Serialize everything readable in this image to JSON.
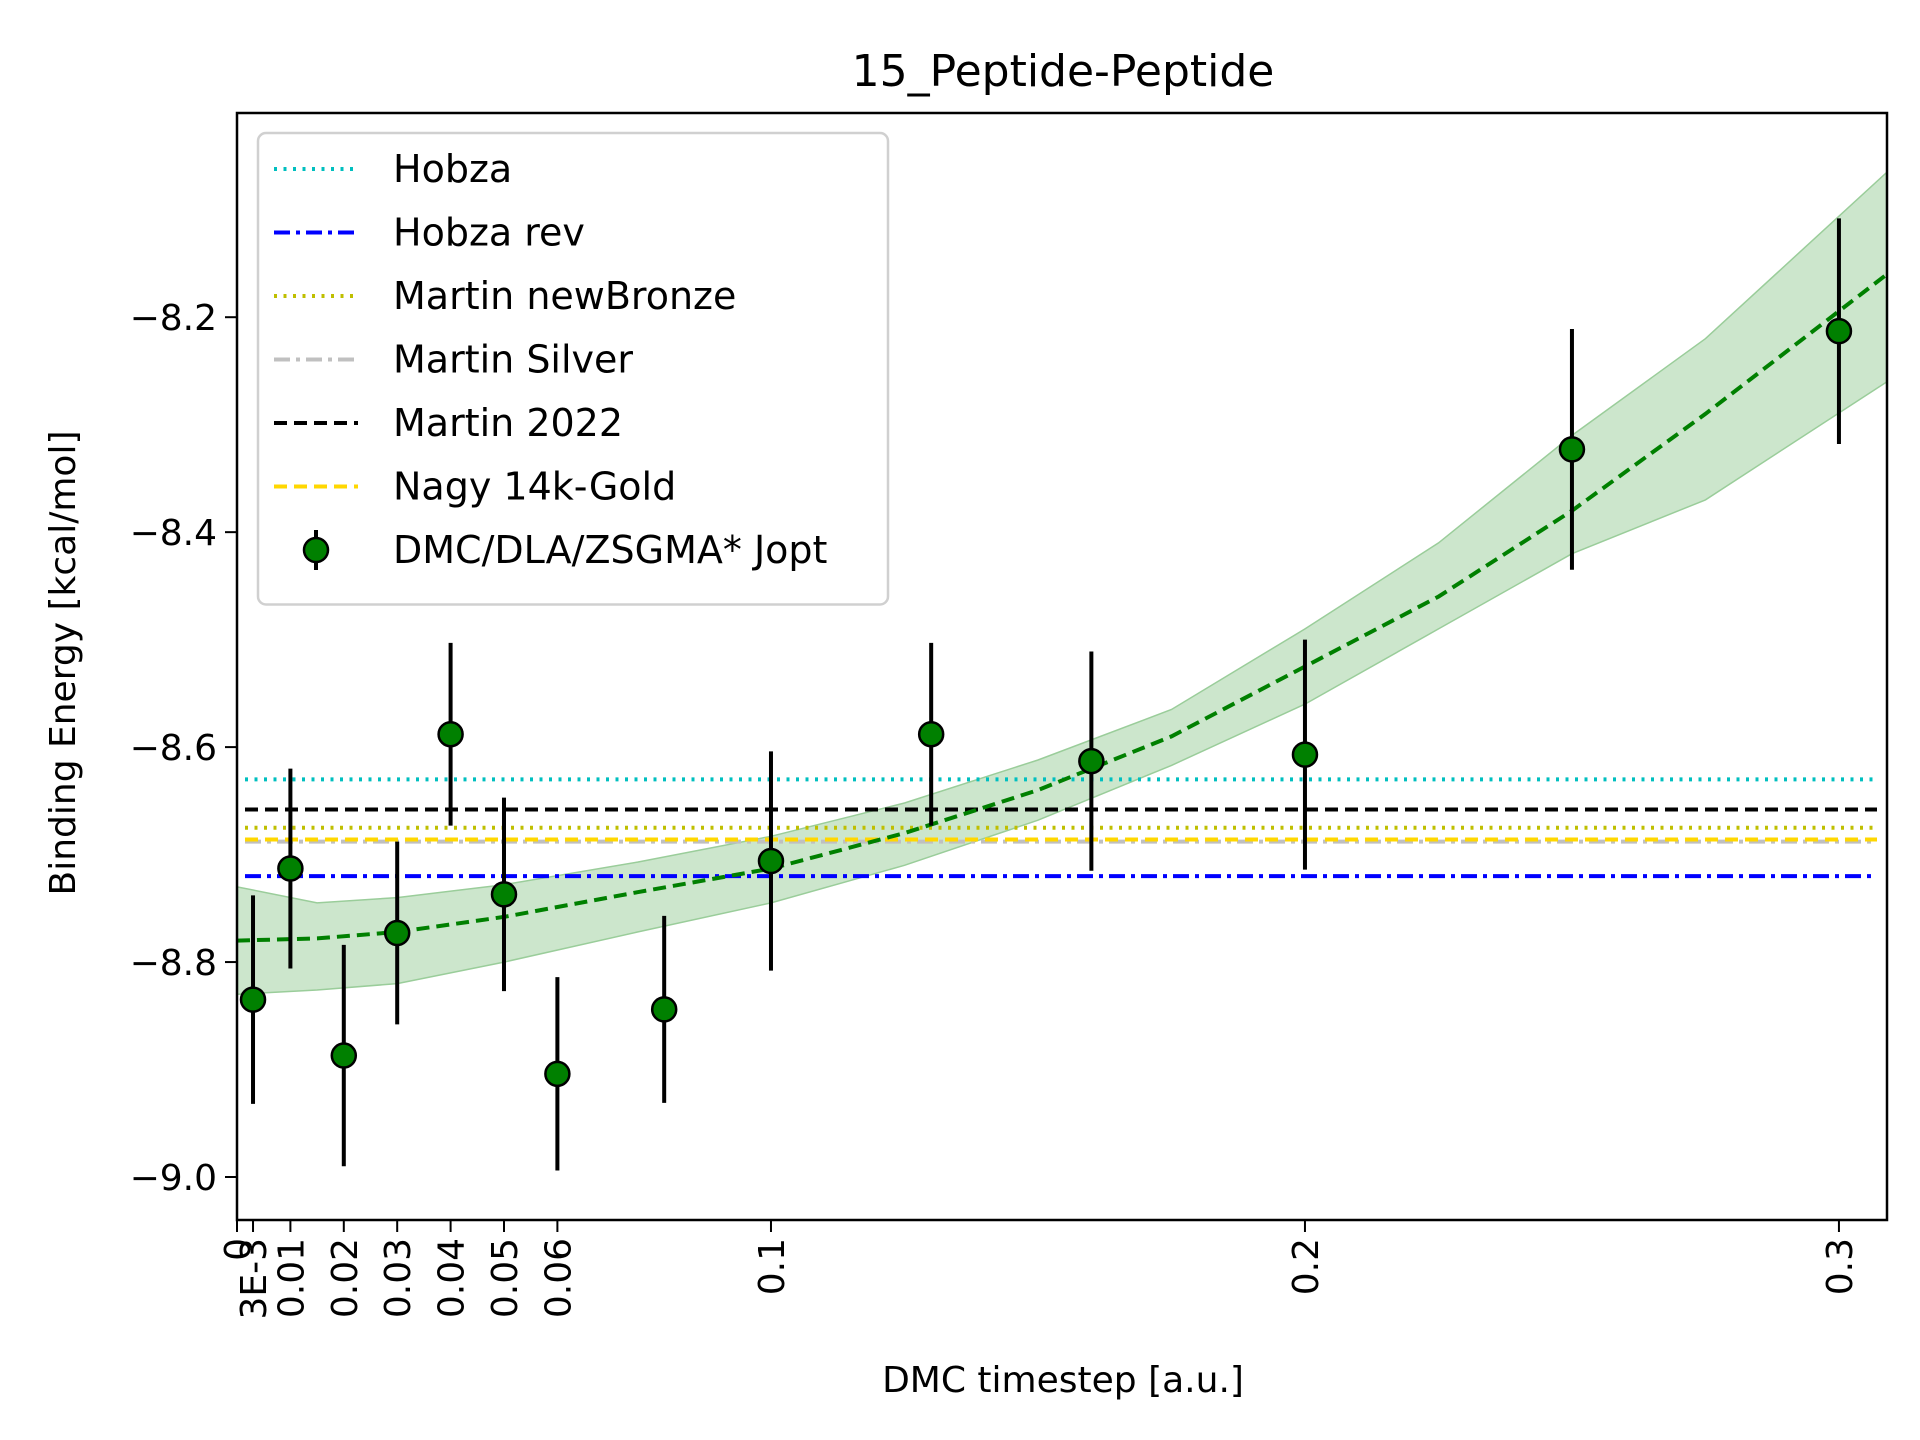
{
  "chart_data": {
    "type": "scatter",
    "title": "15_Peptide-Peptide",
    "xlabel": "DMC timestep [a.u.]",
    "ylabel": "Binding Energy [kcal/mol]",
    "xlim": [
      0,
      0.309
    ],
    "ylim": [
      -9.04,
      -8.01
    ],
    "x_ticks": [
      {
        "value": 0,
        "label": "0"
      },
      {
        "value": 0.003,
        "label": "3E-3"
      },
      {
        "value": 0.01,
        "label": "0.01"
      },
      {
        "value": 0.02,
        "label": "0.02"
      },
      {
        "value": 0.03,
        "label": "0.03"
      },
      {
        "value": 0.04,
        "label": "0.04"
      },
      {
        "value": 0.05,
        "label": "0.05"
      },
      {
        "value": 0.06,
        "label": "0.06"
      },
      {
        "value": 0.1,
        "label": "0.1"
      },
      {
        "value": 0.2,
        "label": "0.2"
      },
      {
        "value": 0.3,
        "label": "0.3"
      }
    ],
    "y_ticks": [
      {
        "value": -8.2,
        "label": "−8.2"
      },
      {
        "value": -8.4,
        "label": "−8.4"
      },
      {
        "value": -8.6,
        "label": "−8.6"
      },
      {
        "value": -8.8,
        "label": "−8.8"
      },
      {
        "value": -9.0,
        "label": "−9.0"
      }
    ],
    "reference_lines": [
      {
        "name": "Hobza",
        "y": -8.63,
        "color": "#00bfbf",
        "style": "dotted"
      },
      {
        "name": "Hobza rev",
        "y": -8.72,
        "color": "#0000ff",
        "style": "dashdot"
      },
      {
        "name": "Martin newBronze",
        "y": -8.675,
        "color": "#bfbf00",
        "style": "dotted"
      },
      {
        "name": "Martin Silver",
        "y": -8.688,
        "color": "#c0c0c0",
        "style": "dashdot"
      },
      {
        "name": "Martin 2022",
        "y": -8.658,
        "color": "#000000",
        "style": "dashed"
      },
      {
        "name": "Nagy 14k-Gold",
        "y": -8.686,
        "color": "#ffd700",
        "style": "dashed"
      }
    ],
    "series": [
      {
        "name": "DMC/DLA/ZSGMA* Jopt",
        "color": "#008000",
        "x": [
          0.003,
          0.01,
          0.02,
          0.03,
          0.04,
          0.05,
          0.06,
          0.08,
          0.1,
          0.13,
          0.16,
          0.2,
          0.25,
          0.3
        ],
        "y": [
          -8.835,
          -8.713,
          -8.887,
          -8.773,
          -8.588,
          -8.737,
          -8.904,
          -8.844,
          -8.706,
          -8.588,
          -8.613,
          -8.607,
          -8.323,
          -8.213
        ],
        "yerr": [
          0.097,
          0.093,
          0.103,
          0.085,
          0.085,
          0.09,
          0.09,
          0.087,
          0.102,
          0.085,
          0.102,
          0.107,
          0.112,
          0.105
        ]
      }
    ],
    "fit": {
      "color": "#008000",
      "band_color": "#9acd9a",
      "x": [
        0,
        0.015,
        0.03,
        0.05,
        0.075,
        0.1,
        0.125,
        0.15,
        0.175,
        0.2,
        0.225,
        0.25,
        0.275,
        0.309
      ],
      "y": [
        -8.78,
        -8.778,
        -8.772,
        -8.758,
        -8.735,
        -8.713,
        -8.68,
        -8.64,
        -8.59,
        -8.525,
        -8.46,
        -8.38,
        -8.29,
        -8.16
      ],
      "lower": [
        -8.83,
        -8.826,
        -8.82,
        -8.8,
        -8.772,
        -8.745,
        -8.71,
        -8.668,
        -8.617,
        -8.56,
        -8.49,
        -8.42,
        -8.37,
        -8.26
      ],
      "upper": [
        -8.73,
        -8.745,
        -8.74,
        -8.728,
        -8.707,
        -8.683,
        -8.652,
        -8.612,
        -8.565,
        -8.49,
        -8.41,
        -8.31,
        -8.22,
        -8.065
      ]
    },
    "legend_position": "top-left",
    "grid": false
  }
}
